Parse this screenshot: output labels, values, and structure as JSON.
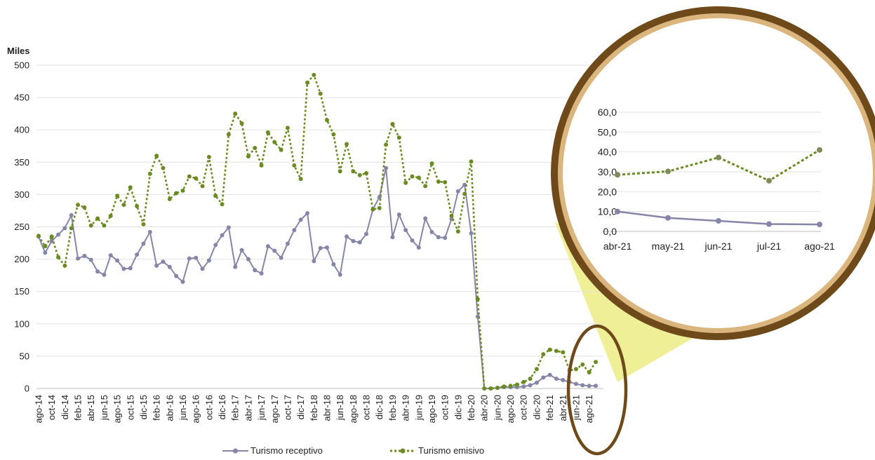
{
  "colors": {
    "receptivo": "#8585a8",
    "emisivo": "#6b8a23",
    "ring_outer": "#6e4a1a",
    "ring_inner": "#dbb57e",
    "highlight": "#eeef96",
    "grid": "#e2e2e2"
  },
  "chart_data": [
    {
      "type": "line",
      "title": "",
      "ylabel": "Miles",
      "ylim": [
        0,
        500
      ],
      "yticks": [
        "0",
        "50",
        "100",
        "150",
        "200",
        "250",
        "300",
        "350",
        "400",
        "450",
        "500"
      ],
      "x_labels_shown": [
        "ago-14",
        "oct-14",
        "dic-14",
        "feb-15",
        "abr-15",
        "jun-15",
        "ago-15",
        "oct-15",
        "dic-15",
        "feb-16",
        "abr-16",
        "jun-16",
        "ago-16",
        "oct-16",
        "dic-16",
        "feb-17",
        "abr-17",
        "jun-17",
        "ago-17",
        "oct-17",
        "dic-17",
        "feb-18",
        "abr-18",
        "jun-18",
        "ago-18",
        "oct-18",
        "dic-18",
        "feb-19",
        "abr-19",
        "jun-19",
        "ago-19",
        "oct-19",
        "dic-19",
        "feb-20",
        "abr-20",
        "jun-20",
        "ago-20",
        "oct-20",
        "dic-20",
        "feb-21",
        "abr-21",
        "jun-21",
        "ago-21"
      ],
      "legend_position": "bottom",
      "series": [
        {
          "name": "Turismo receptivo",
          "values": [
            235,
            210,
            228,
            238,
            248,
            268,
            201,
            205,
            199,
            181,
            176,
            206,
            198,
            185,
            186,
            207,
            224,
            242,
            190,
            196,
            188,
            174,
            165,
            201,
            202,
            185,
            198,
            222,
            237,
            249,
            188,
            214,
            200,
            183,
            178,
            220,
            213,
            202,
            224,
            245,
            261,
            271,
            197,
            217,
            218,
            192,
            176,
            235,
            228,
            226,
            239,
            277,
            296,
            341,
            234,
            269,
            245,
            229,
            218,
            263,
            242,
            234,
            233,
            262,
            305,
            315,
            240,
            111,
            0,
            0,
            1,
            2,
            2,
            2,
            3,
            5,
            9,
            17,
            21,
            15,
            13,
            10,
            7,
            5,
            4,
            4
          ]
        },
        {
          "name": "Turismo emisivo",
          "values": [
            236,
            220,
            235,
            203,
            190,
            248,
            284,
            280,
            252,
            263,
            252,
            267,
            298,
            284,
            311,
            282,
            254,
            332,
            360,
            341,
            293,
            302,
            306,
            328,
            325,
            313,
            358,
            298,
            285,
            393,
            425,
            410,
            359,
            372,
            345,
            396,
            381,
            369,
            403,
            345,
            324,
            473,
            485,
            456,
            415,
            393,
            336,
            378,
            336,
            330,
            333,
            277,
            279,
            377,
            409,
            388,
            318,
            328,
            326,
            313,
            348,
            320,
            319,
            267,
            243,
            301,
            351,
            138,
            0,
            0,
            1,
            3,
            4,
            6,
            10,
            15,
            30,
            53,
            60,
            58,
            56,
            28,
            30,
            37,
            25,
            41
          ]
        }
      ]
    },
    {
      "type": "line",
      "title": "",
      "categories": [
        "abr-21",
        "may-21",
        "jun-21",
        "jul-21",
        "ago-21"
      ],
      "ylim": [
        0,
        60
      ],
      "yticks": [
        "0,0",
        "10,0",
        "20,0",
        "30,0",
        "40,0",
        "50,0",
        "60,0"
      ],
      "series": [
        {
          "name": "Turismo receptivo",
          "values": [
            10.0,
            6.8,
            5.3,
            3.7,
            3.5
          ]
        },
        {
          "name": "Turismo emisivo",
          "values": [
            28.5,
            30.2,
            37.2,
            25.5,
            41.0
          ]
        }
      ]
    }
  ]
}
